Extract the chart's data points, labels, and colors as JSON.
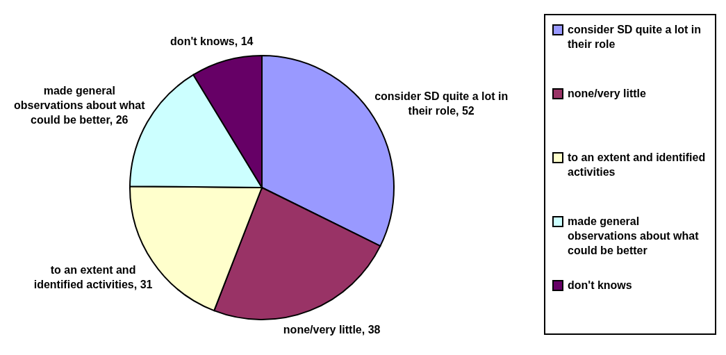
{
  "chart_data": {
    "type": "pie",
    "categories": [
      "consider SD quite a lot in their role",
      "none/very little",
      "to an extent and identified activities",
      "made general observations about what could be better",
      "don't knows"
    ],
    "values": [
      52,
      38,
      31,
      26,
      14
    ],
    "colors": [
      "#9999ff",
      "#993366",
      "#ffffcc",
      "#ccffff",
      "#660066"
    ],
    "value_labels": [
      "consider SD quite a lot in their role, 52",
      "none/very little, 38",
      "to an extent and identified activities, 31",
      "made general observations about what could be better, 26",
      "don't knows, 14"
    ],
    "legend": "right"
  }
}
